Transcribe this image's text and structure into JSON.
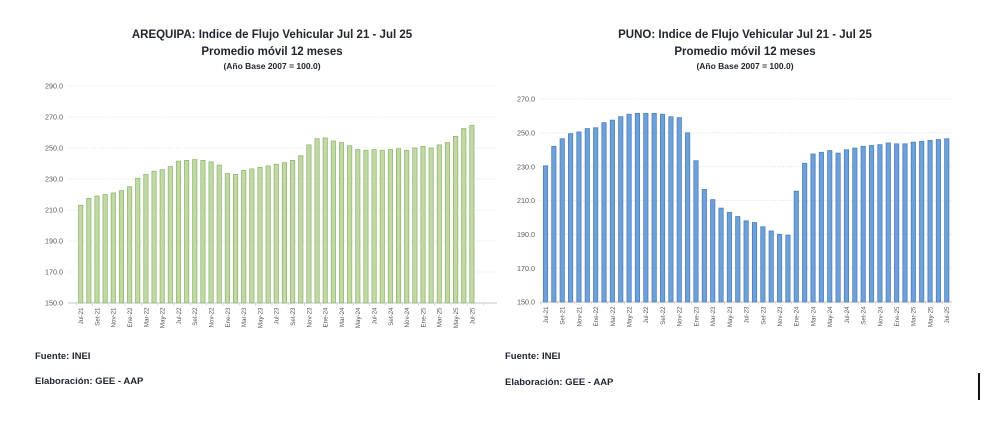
{
  "page": {
    "background": "#ffffff"
  },
  "chart_data": [
    {
      "type": "bar",
      "title": "AREQUIPA: Indice de Flujo Vehicular Jul 21 - Jul 25",
      "subtitle": "Promedio móvil 12 meses",
      "note": "(Año Base 2007 = 100.0)",
      "source": "Fuente: INEI",
      "credit": "Elaboración: GEE - AAP",
      "xlabel": "",
      "ylabel": "",
      "ylim": [
        150,
        290
      ],
      "ytick_step": 20,
      "yticks": [
        "150.0",
        "170.0",
        "190.0",
        "210.0",
        "230.0",
        "250.0",
        "270.0",
        "290.0"
      ],
      "grid": "dotted-horizontal",
      "legend": "none",
      "bar_color": "#c2d8a6",
      "bar_border": "#8fb971",
      "categories": [
        "Jul-21",
        "Ago-21",
        "Set-21",
        "Oct-21",
        "Nov-21",
        "Dic-21",
        "Ene-22",
        "Feb-22",
        "Mar-22",
        "Abr-22",
        "May-22",
        "Jun-22",
        "Jul-22",
        "Ago-22",
        "Set-22",
        "Oct-22",
        "Nov-22",
        "Dic-22",
        "Ene-23",
        "Feb-23",
        "Mar-23",
        "Abr-23",
        "May-23",
        "Jun-23",
        "Jul-23",
        "Ago-23",
        "Set-23",
        "Oct-23",
        "Nov-23",
        "Dic-23",
        "Ene-24",
        "Feb-24",
        "Mar-24",
        "Abr-24",
        "May-24",
        "Jun-24",
        "Jul-24",
        "Ago-24",
        "Set-24",
        "Oct-24",
        "Nov-24",
        "Dic-24",
        "Ene-25",
        "Feb-25",
        "Mar-25",
        "Abr-25",
        "May-25",
        "Jun-25",
        "Jul-25"
      ],
      "xticks_shown": [
        "Jul-21",
        "Set-21",
        "Nov-21",
        "Ene-22",
        "Mar-22",
        "May-22",
        "Jul-22",
        "Set-22",
        "Nov-22",
        "Ene-23",
        "Mar-23",
        "May-23",
        "Jul-23",
        "Set-23",
        "Nov-23",
        "Ene-24",
        "Mar-24",
        "May-24",
        "Jul-24",
        "Set-24",
        "Nov-24",
        "Ene-25",
        "Mar-25",
        "May-25",
        "Jul-25"
      ],
      "values": [
        213.0,
        217.5,
        219.0,
        220.0,
        221.0,
        222.5,
        225.0,
        230.5,
        233.0,
        235.0,
        236.0,
        238.0,
        241.5,
        242.0,
        242.5,
        242.0,
        241.0,
        239.0,
        233.5,
        233.0,
        235.5,
        236.5,
        237.5,
        238.5,
        239.5,
        240.5,
        242.0,
        245.0,
        252.0,
        256.0,
        256.5,
        254.5,
        253.5,
        251.5,
        249.0,
        248.5,
        249.0,
        248.5,
        249.0,
        249.5,
        248.5,
        250.0,
        251.0,
        250.0,
        252.0,
        253.5,
        257.5,
        262.5,
        264.5
      ]
    },
    {
      "type": "bar",
      "title": "PUNO: Indice de Flujo Vehicular Jul 21 - Jul 25",
      "subtitle": "Promedio móvil 12 meses",
      "note": "(Año Base 2007 = 100.0)",
      "source": "Fuente: INEI",
      "credit": "Elaboración: GEE - AAP",
      "xlabel": "",
      "ylabel": "",
      "ylim": [
        150,
        270
      ],
      "ytick_step": 20,
      "yticks": [
        "150.0",
        "170.0",
        "190.0",
        "210.0",
        "230.0",
        "250.0",
        "270.0"
      ],
      "grid": "dotted-horizontal",
      "legend": "none",
      "bar_color": "#6fa1d9",
      "bar_border": "#4b7fbf",
      "categories": [
        "Jul-21",
        "Ago-21",
        "Set-21",
        "Oct-21",
        "Nov-21",
        "Dic-21",
        "Ene-22",
        "Feb-22",
        "Mar-22",
        "Abr-22",
        "May-22",
        "Jun-22",
        "Jul-22",
        "Ago-22",
        "Set-22",
        "Oct-22",
        "Nov-22",
        "Dic-22",
        "Ene-23",
        "Feb-23",
        "Mar-23",
        "Abr-23",
        "May-23",
        "Jun-23",
        "Jul-23",
        "Ago-23",
        "Set-23",
        "Oct-23",
        "Nov-23",
        "Dic-23",
        "Ene-24",
        "Feb-24",
        "Mar-24",
        "Abr-24",
        "May-24",
        "Jun-24",
        "Jul-24",
        "Ago-24",
        "Set-24",
        "Oct-24",
        "Nov-24",
        "Dic-24",
        "Ene-25",
        "Feb-25",
        "Mar-25",
        "Abr-25",
        "May-25",
        "Jun-25",
        "Jul-25"
      ],
      "xticks_shown": [
        "Jul-21",
        "Set-21",
        "Nov-21",
        "Ene-22",
        "Mar-22",
        "May-22",
        "Jul-22",
        "Set-22",
        "Nov-22",
        "Ene-23",
        "Mar-23",
        "May-23",
        "Jul-23",
        "Set-23",
        "Nov-23",
        "Ene-24",
        "Mar-24",
        "May-24",
        "Jul-24",
        "Set-24",
        "Nov-24",
        "Ene-25",
        "Mar-25",
        "May-25",
        "Jul-25"
      ],
      "values": [
        230.5,
        242.0,
        246.5,
        249.5,
        250.5,
        252.5,
        253.0,
        256.0,
        257.5,
        259.5,
        261.0,
        261.5,
        261.5,
        261.5,
        261.0,
        259.5,
        259.0,
        250.0,
        233.5,
        216.5,
        210.5,
        205.5,
        203.0,
        200.5,
        198.0,
        197.0,
        194.5,
        192.0,
        190.0,
        189.5,
        215.5,
        232.0,
        237.5,
        238.5,
        239.5,
        238.0,
        240.0,
        241.0,
        242.0,
        242.5,
        243.0,
        244.0,
        243.5,
        243.5,
        244.5,
        245.0,
        245.5,
        246.0,
        246.5
      ]
    }
  ],
  "text_cursor": {
    "present": true
  }
}
